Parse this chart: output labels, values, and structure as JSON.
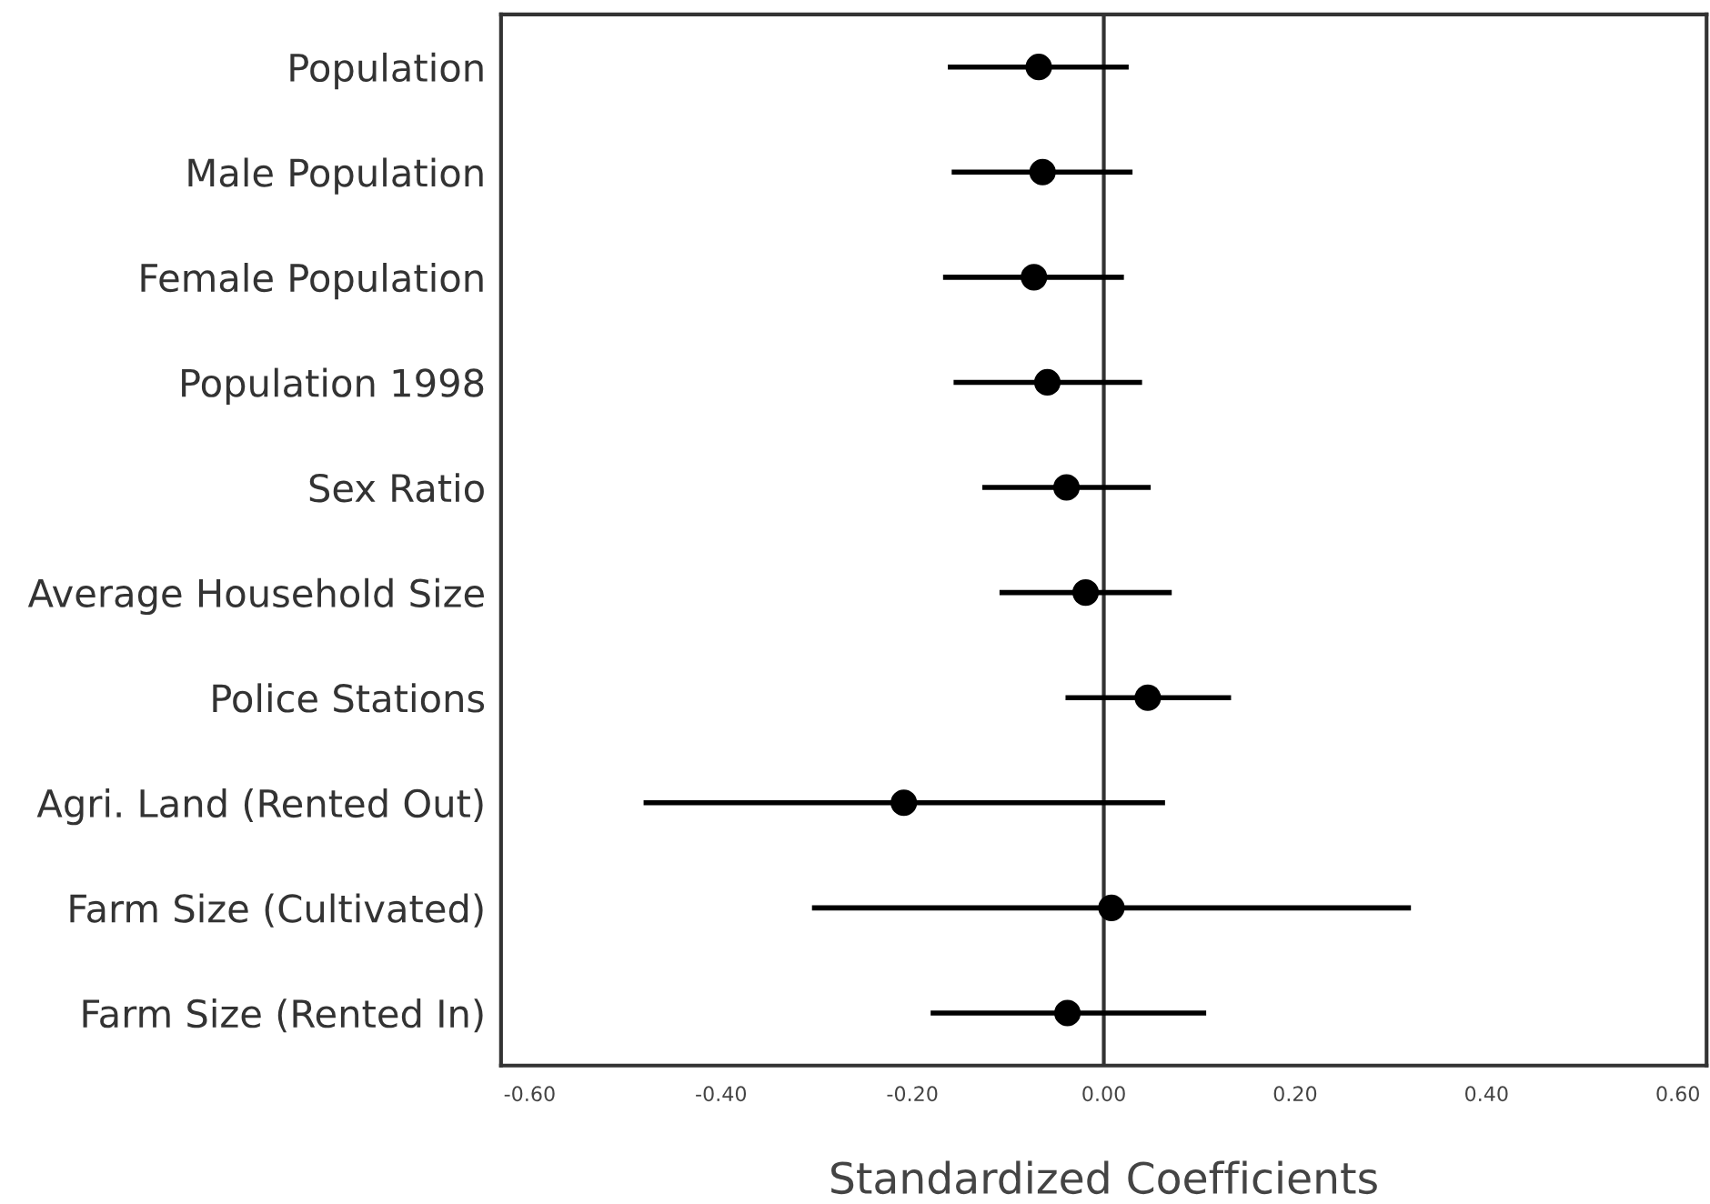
{
  "chart_data": {
    "type": "scatter",
    "orientation": "horizontal",
    "xlabel": "Standardized Coefficients",
    "categories": [
      "Population",
      "Male Population",
      "Female Population",
      "Population 1998",
      "Sex Ratio",
      "Average Household Size",
      "Police Stations",
      "Agri. Land (Rented Out)",
      "Farm Size (Cultivated)",
      "Farm Size (Rented In)"
    ],
    "series": [
      {
        "color": "#000000",
        "values": [
          -0.068,
          -0.064,
          -0.073,
          -0.059,
          -0.039,
          -0.019,
          0.046,
          -0.209,
          0.008,
          -0.038
        ],
        "errors": [
          [
            -0.163,
            0.026
          ],
          [
            -0.159,
            0.03
          ],
          [
            -0.168,
            0.021
          ],
          [
            -0.157,
            0.04
          ],
          [
            -0.127,
            0.049
          ],
          [
            -0.109,
            0.071
          ],
          [
            -0.04,
            0.133
          ],
          [
            -0.481,
            0.064
          ],
          [
            -0.305,
            0.321
          ],
          [
            -0.181,
            0.107
          ]
        ]
      }
    ],
    "xlim": [
      -0.63,
      0.63
    ],
    "xticks": [
      {
        "value": -0.6,
        "label": "-0.60"
      },
      {
        "value": -0.4,
        "label": "-0.40"
      },
      {
        "value": -0.2,
        "label": "-0.20"
      },
      {
        "value": 0,
        "label": "0.00"
      },
      {
        "value": 0.2,
        "label": "0.20"
      },
      {
        "value": 0.4,
        "label": "0.40"
      },
      {
        "value": 0.6,
        "label": "0.60"
      }
    ],
    "ref_lines": [
      {
        "axis": "x",
        "value": 0,
        "color": "#333333"
      }
    ],
    "marker": "circle",
    "grid": false,
    "legend": false
  }
}
